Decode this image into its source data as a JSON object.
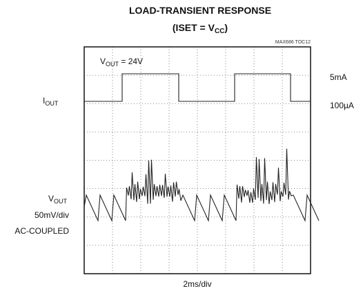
{
  "header": {
    "title": "LOAD-TRANSIENT RESPONSE",
    "subtitle": {
      "main": "(ISET = V",
      "sub": "CC",
      "rest": ")"
    },
    "code": "MAX686 TOC12"
  },
  "labels": {
    "vout_setting": {
      "main": "V",
      "sub": "OUT",
      "rest": " = 24V"
    },
    "iout": {
      "main": "I",
      "sub": "OUT"
    },
    "iout_high": "5mA",
    "iout_low": "100µA",
    "vout": {
      "main": "V",
      "sub": "OUT"
    },
    "vout_scale": "50mV/div",
    "vout_coupling": "AC-COUPLED",
    "time_scale": "2ms/div"
  }
}
